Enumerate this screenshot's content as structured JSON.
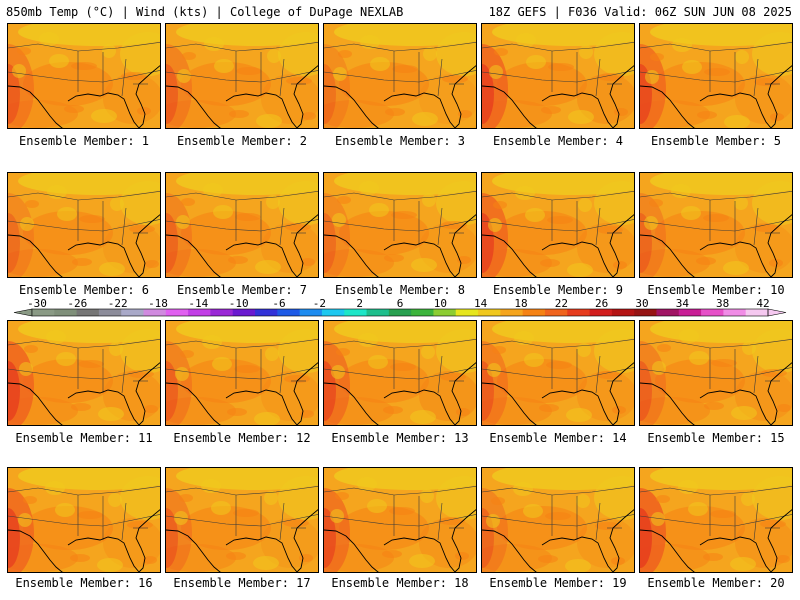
{
  "header": {
    "left": "850mb Temp (°C) | Wind (kts) | College of DuPage NEXLAB",
    "right": "18Z GEFS | F036 Valid: 06Z SUN JUN 08 2025"
  },
  "members": [
    {
      "label": "Ensemble Member: 1",
      "hot_west": 0.55,
      "hot_east": 0.35
    },
    {
      "label": "Ensemble Member: 2",
      "hot_west": 0.5,
      "hot_east": 0.3
    },
    {
      "label": "Ensemble Member: 3",
      "hot_west": 0.35,
      "hot_east": 0.2
    },
    {
      "label": "Ensemble Member: 4",
      "hot_west": 0.85,
      "hot_east": 0.45
    },
    {
      "label": "Ensemble Member: 5",
      "hot_west": 0.75,
      "hot_east": 0.35
    },
    {
      "label": "Ensemble Member: 6",
      "hot_west": 0.4,
      "hot_east": 0.25
    },
    {
      "label": "Ensemble Member: 7",
      "hot_west": 0.45,
      "hot_east": 0.3
    },
    {
      "label": "Ensemble Member: 8",
      "hot_west": 0.4,
      "hot_east": 0.3
    },
    {
      "label": "Ensemble Member: 9",
      "hot_west": 0.8,
      "hot_east": 0.35
    },
    {
      "label": "Ensemble Member: 10",
      "hot_west": 0.45,
      "hot_east": 0.3
    },
    {
      "label": "Ensemble Member: 11",
      "hot_west": 0.85,
      "hot_east": 0.4
    },
    {
      "label": "Ensemble Member: 12",
      "hot_west": 0.5,
      "hot_east": 0.3
    },
    {
      "label": "Ensemble Member: 13",
      "hot_west": 0.7,
      "hot_east": 0.45
    },
    {
      "label": "Ensemble Member: 14",
      "hot_west": 0.55,
      "hot_east": 0.35
    },
    {
      "label": "Ensemble Member: 15",
      "hot_west": 0.5,
      "hot_east": 0.4
    },
    {
      "label": "Ensemble Member: 16",
      "hot_west": 0.8,
      "hot_east": 0.3
    },
    {
      "label": "Ensemble Member: 17",
      "hot_west": 0.5,
      "hot_east": 0.25
    },
    {
      "label": "Ensemble Member: 18",
      "hot_west": 0.7,
      "hot_east": 0.4
    },
    {
      "label": "Ensemble Member: 19",
      "hot_west": 0.45,
      "hot_east": 0.3
    },
    {
      "label": "Ensemble Member: 20",
      "hot_west": 0.9,
      "hot_east": 0.4
    }
  ],
  "colorbar": {
    "ticks": [
      "-30",
      "-26",
      "-22",
      "-18",
      "-14",
      "-10",
      "-6",
      "-2",
      "2",
      "6",
      "10",
      "14",
      "18",
      "22",
      "26",
      "30",
      "34",
      "38",
      "42"
    ],
    "colors": [
      "#8a9a85",
      "#7f8f7a",
      "#767676",
      "#8c8c9a",
      "#a9a9c8",
      "#d08adf",
      "#e060f0",
      "#c23ee6",
      "#9a28d6",
      "#6a1ad0",
      "#3232d8",
      "#1e5ae6",
      "#1e8cf0",
      "#1ec8f0",
      "#1ee6c8",
      "#1ebe8c",
      "#28a050",
      "#3cb43c",
      "#8ccd32",
      "#e6e61e",
      "#f0c81e",
      "#f5a51e",
      "#f58214",
      "#f0641e",
      "#e63c1e",
      "#d21e1e",
      "#b41414",
      "#961414",
      "#a01464",
      "#c81e96",
      "#e650c8",
      "#f08ce6",
      "#f5c8f0"
    ]
  }
}
